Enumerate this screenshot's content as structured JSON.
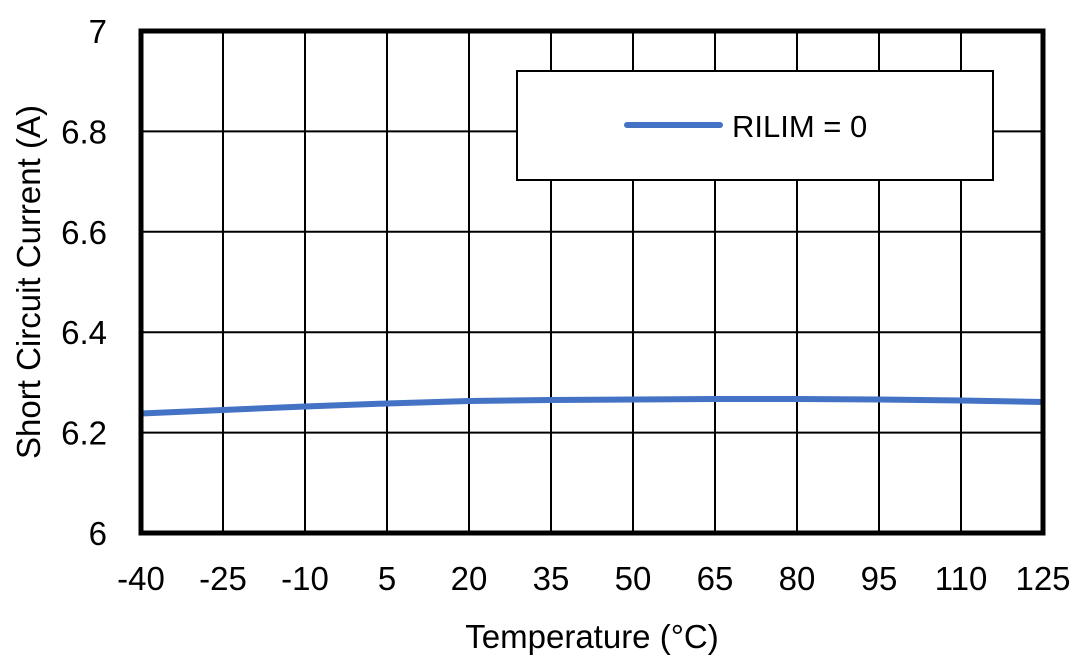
{
  "chart_data": {
    "type": "line",
    "title": "",
    "xlabel": "Temperature (°C)",
    "ylabel": "Short Circuit Current (A)",
    "xlim": [
      -40,
      125
    ],
    "ylim": [
      6,
      7
    ],
    "x_ticks": [
      -40,
      -25,
      -10,
      5,
      20,
      35,
      50,
      65,
      80,
      95,
      110,
      125
    ],
    "x_tick_labels": [
      "-40",
      "-25",
      "-10",
      "5",
      "20",
      "35",
      "50",
      "65",
      "80",
      "95",
      "110",
      "125"
    ],
    "y_ticks": [
      6,
      6.2,
      6.4,
      6.6,
      6.8,
      7
    ],
    "y_tick_labels": [
      "6",
      "6.2",
      "6.4",
      "6.6",
      "6.8",
      "7"
    ],
    "grid": true,
    "legend_position": "top-right",
    "series": [
      {
        "name": "RILIM = 0",
        "color": "#4472C4",
        "x": [
          -40,
          -25,
          -10,
          5,
          20,
          35,
          50,
          65,
          80,
          95,
          110,
          125
        ],
        "y": [
          6.238,
          6.245,
          6.252,
          6.258,
          6.263,
          6.265,
          6.266,
          6.267,
          6.267,
          6.266,
          6.264,
          6.261
        ]
      }
    ]
  }
}
